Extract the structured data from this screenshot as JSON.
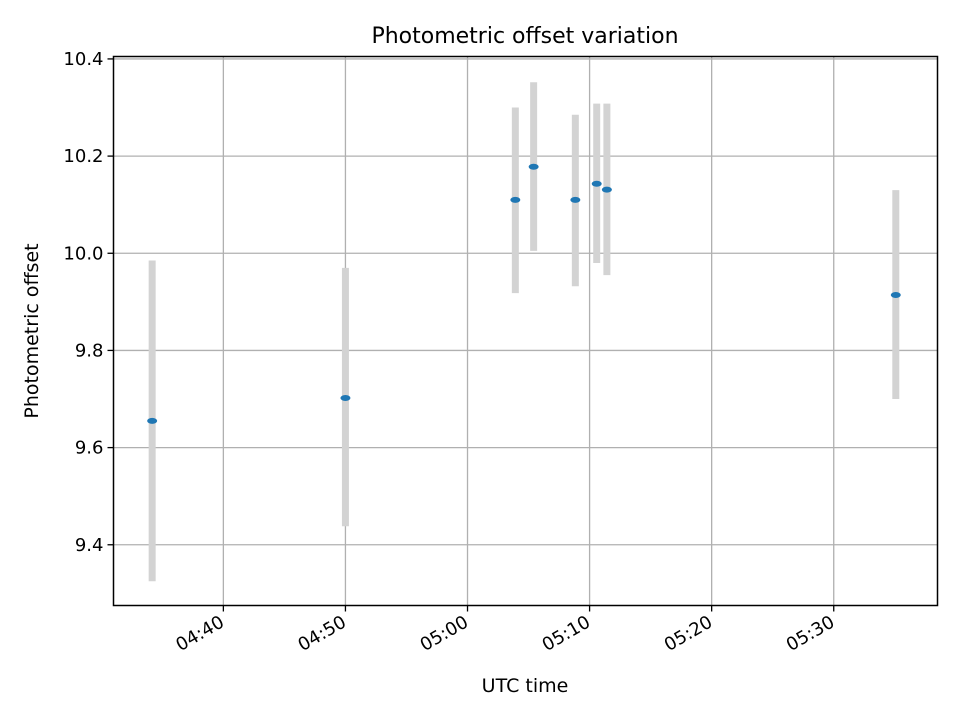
{
  "chart_data": {
    "type": "scatter",
    "title": "Photometric offset variation",
    "xlabel": "UTC time",
    "ylabel": "Photometric offset",
    "xlim": [
      "04:31:00",
      "05:38:30"
    ],
    "ylim": [
      9.275,
      10.405
    ],
    "grid": true,
    "x_ticks": [
      "04:40",
      "04:50",
      "05:00",
      "05:10",
      "05:20",
      "05:30"
    ],
    "y_ticks": [
      "9.4",
      "9.6",
      "9.8",
      "10.0",
      "10.2",
      "10.4"
    ],
    "colors": {
      "marker": "#1f77b4",
      "errorbar": "#d3d3d3",
      "grid": "#b0b0b0"
    },
    "points": [
      {
        "x": "04:34:10",
        "y": 9.655,
        "yerr_low": 9.325,
        "yerr_high": 9.985
      },
      {
        "x": "04:50:00",
        "y": 9.702,
        "yerr_low": 9.438,
        "yerr_high": 9.97
      },
      {
        "x": "05:03:55",
        "y": 10.11,
        "yerr_low": 9.918,
        "yerr_high": 10.3
      },
      {
        "x": "05:05:25",
        "y": 10.178,
        "yerr_low": 10.005,
        "yerr_high": 10.352
      },
      {
        "x": "05:08:50",
        "y": 10.11,
        "yerr_low": 9.932,
        "yerr_high": 10.285
      },
      {
        "x": "05:10:35",
        "y": 10.143,
        "yerr_low": 9.98,
        "yerr_high": 10.308
      },
      {
        "x": "05:11:25",
        "y": 10.131,
        "yerr_low": 9.955,
        "yerr_high": 10.308
      },
      {
        "x": "05:35:05",
        "y": 9.914,
        "yerr_low": 9.7,
        "yerr_high": 10.13
      }
    ]
  }
}
